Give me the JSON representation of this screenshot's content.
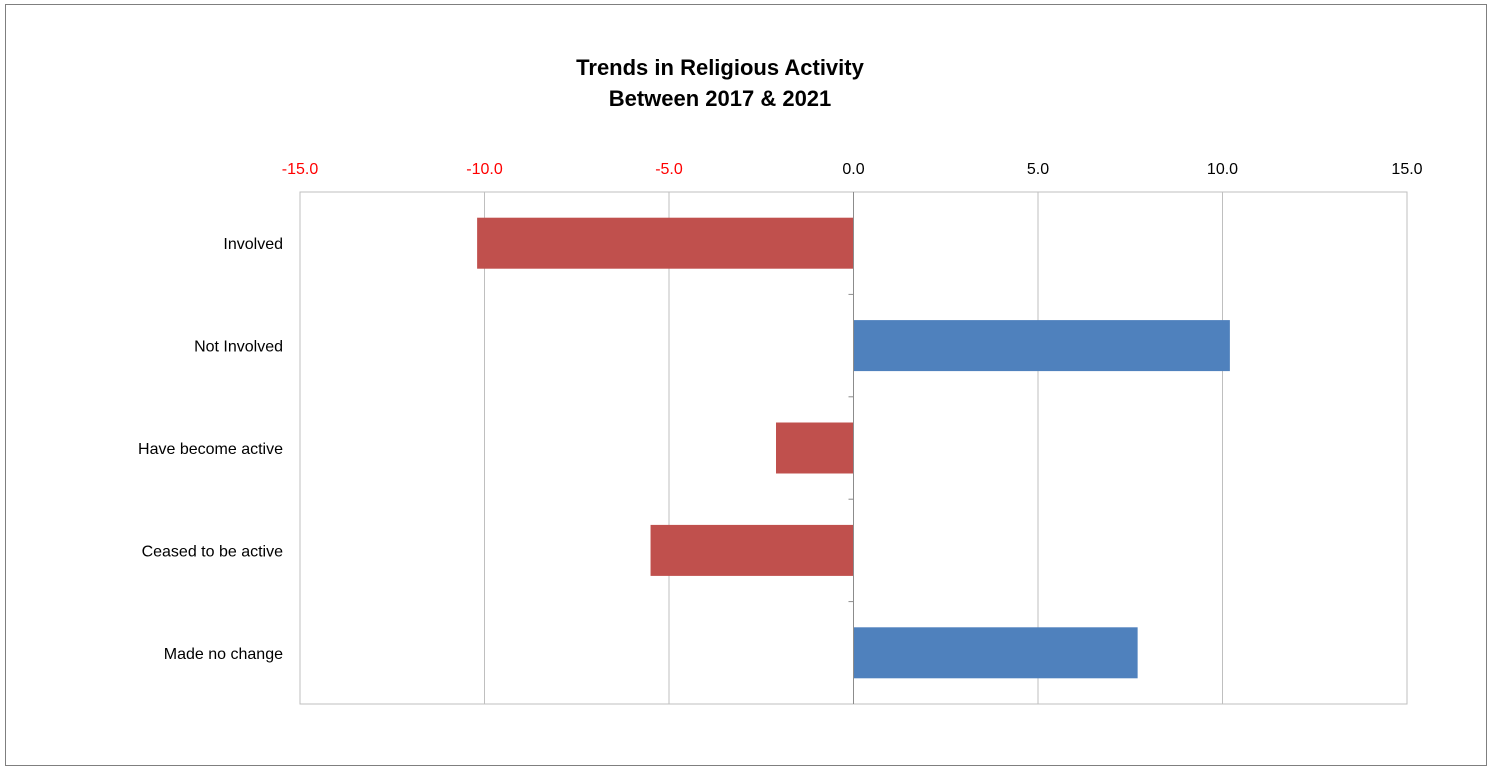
{
  "chart_data": {
    "type": "bar",
    "orientation": "horizontal",
    "title": "Trends in Religious Activity\nBetween 2017  & 2021",
    "xlim": [
      -15,
      15
    ],
    "ticks": [
      -15.0,
      -10.0,
      -5.0,
      0.0,
      5.0,
      10.0,
      15.0
    ],
    "tick_labels": [
      "-15.0",
      "-10.0",
      "-5.0",
      "0.0",
      "5.0",
      "10.0",
      "15.0"
    ],
    "categories": [
      "Involved",
      "Not Involved",
      "Have become active",
      "Ceased to be active",
      "Made no change"
    ],
    "values": [
      -10.2,
      10.2,
      -2.1,
      -5.5,
      7.7
    ],
    "axis_position": "top",
    "grid": "vertical",
    "legend": "none"
  },
  "colors": {
    "negative_bar": "#c0504d",
    "positive_bar": "#4f81bd",
    "negative_tick_label": "#ff0000",
    "positive_tick_label": "#000000",
    "gridline": "#bfbfbf",
    "plot_border": "#bfbfbf"
  }
}
